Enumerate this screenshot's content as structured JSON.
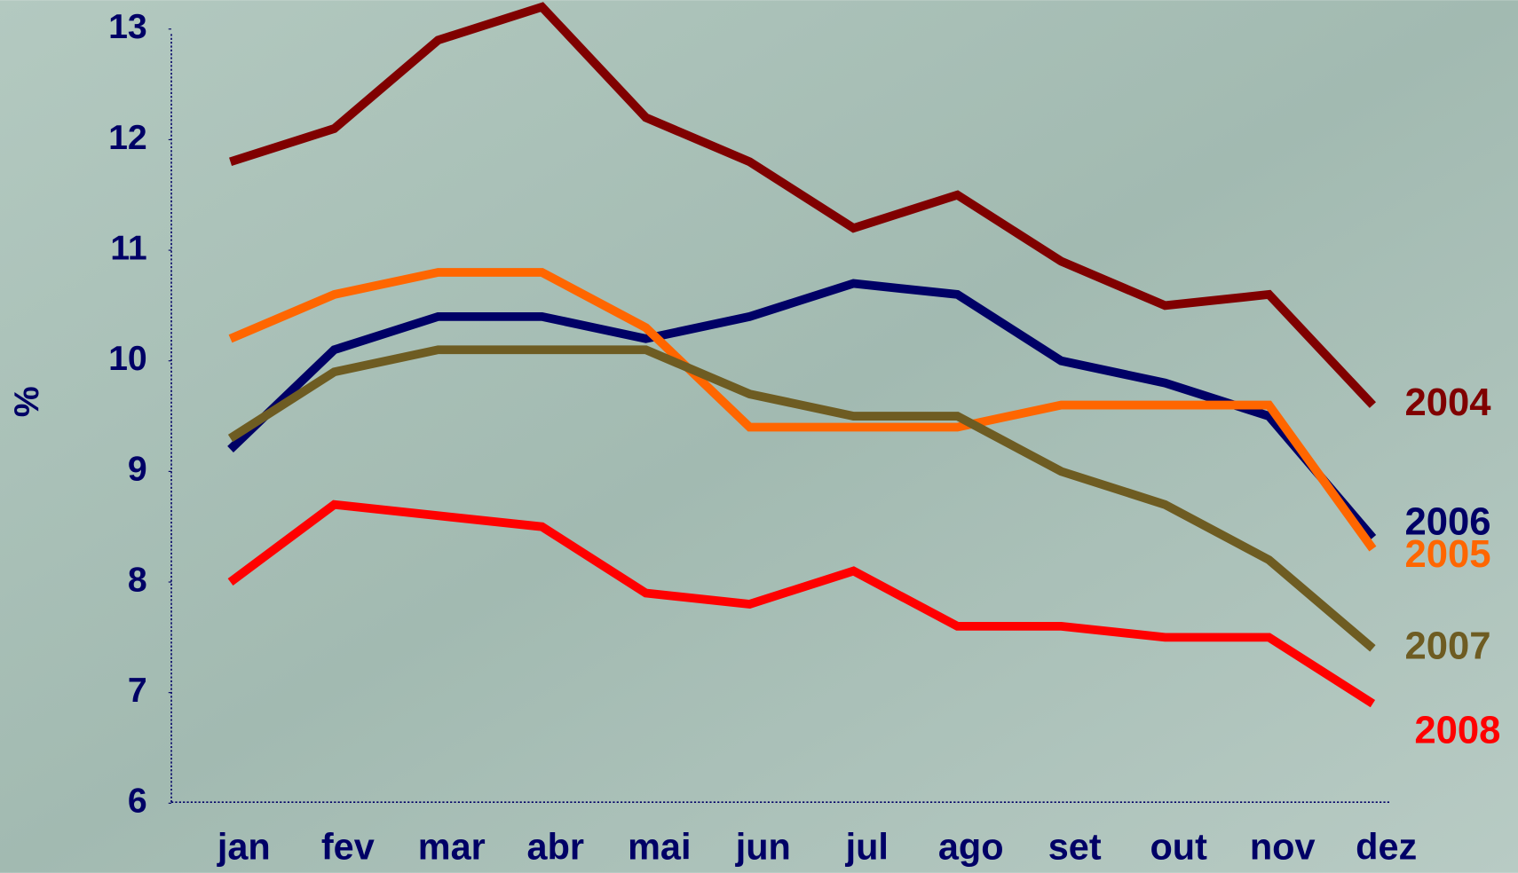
{
  "chart_data": {
    "type": "line",
    "y_label": "%",
    "categories": [
      "jan",
      "fev",
      "mar",
      "abr",
      "mai",
      "jun",
      "jul",
      "ago",
      "set",
      "out",
      "nov",
      "dez"
    ],
    "series": [
      {
        "name": "2004",
        "color": "#800000",
        "values": [
          11.8,
          12.1,
          12.9,
          13.2,
          12.2,
          11.8,
          11.2,
          11.5,
          10.9,
          10.5,
          10.6,
          9.6
        ]
      },
      {
        "name": "2006",
        "color": "#000066",
        "values": [
          9.2,
          10.1,
          10.4,
          10.4,
          10.2,
          10.4,
          10.7,
          10.6,
          10.0,
          9.8,
          9.5,
          8.4
        ]
      },
      {
        "name": "2005",
        "color": "#ff6600",
        "values": [
          10.2,
          10.6,
          10.8,
          10.8,
          10.3,
          9.4,
          9.4,
          9.4,
          9.6,
          9.6,
          9.6,
          8.3
        ]
      },
      {
        "name": "2007",
        "color": "#6e5c22",
        "values": [
          9.3,
          9.9,
          10.1,
          10.1,
          10.1,
          9.7,
          9.5,
          9.5,
          9.0,
          8.7,
          8.2,
          7.4
        ]
      },
      {
        "name": "2008",
        "color": "#ff0000",
        "values": [
          8.0,
          8.7,
          8.6,
          8.5,
          7.9,
          7.8,
          8.1,
          7.6,
          7.6,
          7.5,
          7.5,
          6.9
        ]
      }
    ],
    "ylim": [
      6,
      13.2
    ],
    "yticks": [
      6,
      7,
      8,
      9,
      10,
      11,
      12,
      13
    ],
    "grid": false
  }
}
